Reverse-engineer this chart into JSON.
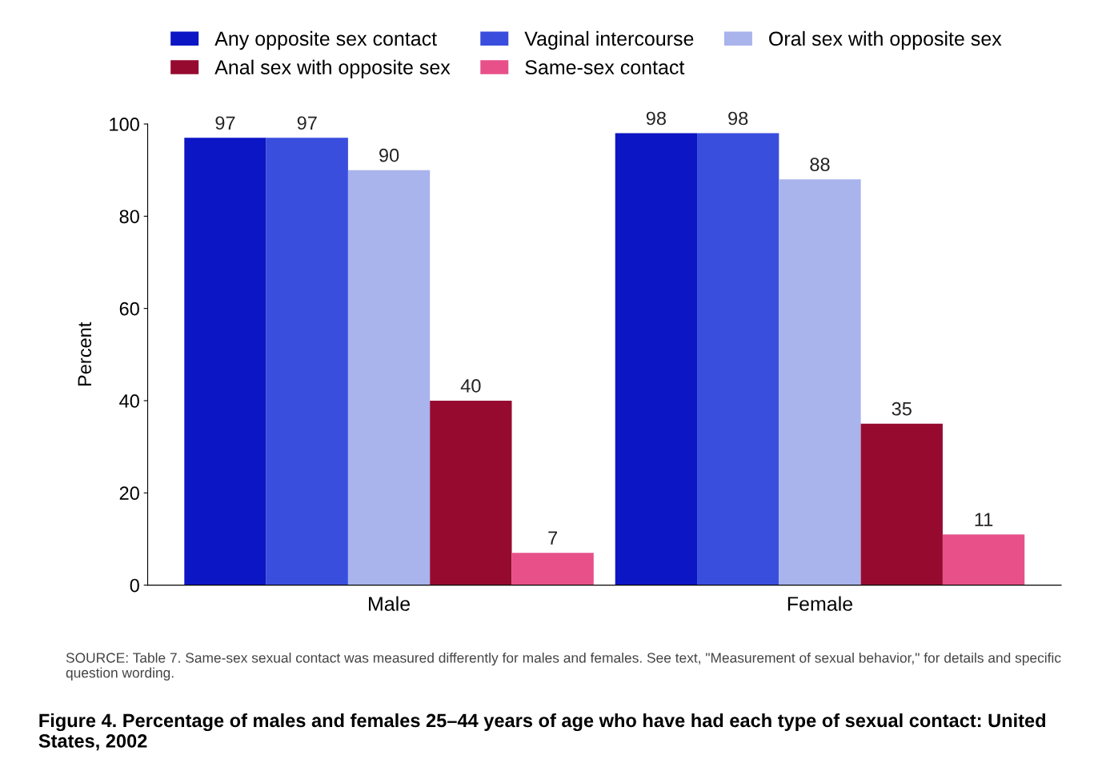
{
  "chart_data": {
    "type": "bar",
    "title": "Figure 4. Percentage of males and females 25–44 years of age who have had each type of sexual contact: United States, 2002",
    "ylabel": "Percent",
    "categories": [
      "Male",
      "Female"
    ],
    "series": [
      {
        "name": "Any opposite sex contact",
        "color": "#0c16c4",
        "values": [
          97,
          98
        ]
      },
      {
        "name": "Vaginal intercourse",
        "color": "#3a4ede",
        "values": [
          97,
          98
        ]
      },
      {
        "name": "Oral sex with opposite sex",
        "color": "#a9b3ec",
        "values": [
          90,
          88
        ]
      },
      {
        "name": "Anal sex with opposite sex",
        "color": "#960a30",
        "values": [
          40,
          35
        ]
      },
      {
        "name": "Same-sex contact",
        "color": "#e8508a",
        "values": [
          7,
          11
        ]
      }
    ],
    "ylim": [
      0,
      100
    ],
    "yticks": [
      0,
      20,
      40,
      60,
      80,
      100
    ],
    "data_labels": true,
    "grid": false,
    "legend": "top",
    "annotations": [
      "SOURCE: Table 7. Same-sex sexual contact was measured differently for males and females. See text, \"Measurement of sexual behavior,\" for details and specific question wording."
    ]
  }
}
